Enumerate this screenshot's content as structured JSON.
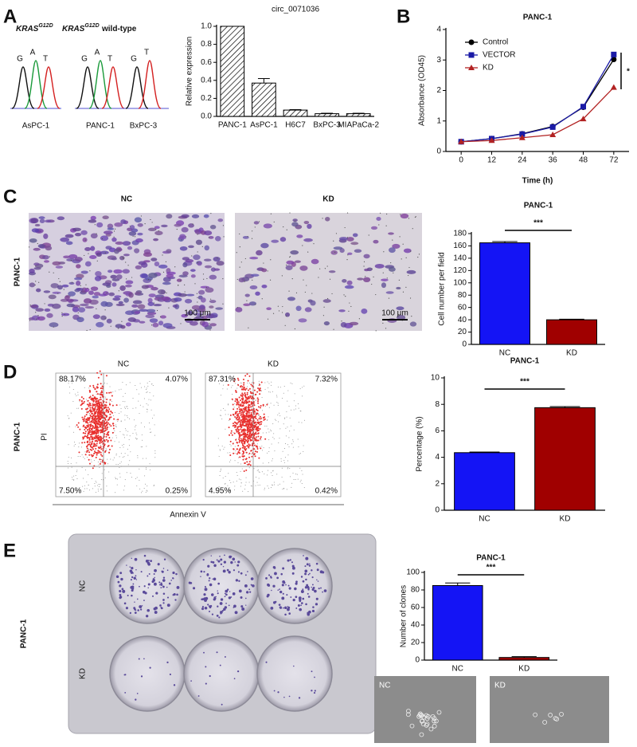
{
  "panel_letters": [
    "A",
    "B",
    "C",
    "D",
    "E"
  ],
  "panel_a": {
    "genotypes": [
      {
        "text": "KRAS",
        "sup": "G12D"
      },
      {
        "text": "KRAS",
        "sup": "G12D"
      },
      {
        "text": "wild-type"
      }
    ],
    "samples": [
      {
        "name": "AsPC-1",
        "bases": [
          "G",
          "A",
          "T"
        ]
      },
      {
        "name": "PANC-1",
        "bases": [
          "G",
          "A",
          "T"
        ]
      },
      {
        "name": "BxPC-3",
        "bases": [
          "G",
          "T"
        ]
      }
    ]
  },
  "panel_c": {
    "row_label": "PANC-1",
    "images": [
      {
        "label": "NC",
        "scale_bar": "100 μm"
      },
      {
        "label": "KD",
        "scale_bar": "100 μm"
      }
    ]
  },
  "panel_d": {
    "row_label": "PANC-1",
    "y_axis": "PI",
    "x_axis": "Annexin V",
    "plots": [
      {
        "label": "NC",
        "quadrants": [
          "88.17%",
          "4.07%",
          "7.50%",
          "0.25%"
        ]
      },
      {
        "label": "KD",
        "quadrants": [
          "87.31%",
          "7.32%",
          "4.95%",
          "0.42%"
        ]
      }
    ]
  },
  "panel_e": {
    "row_label": "PANC-1",
    "plate_rows": [
      "NC",
      "KD"
    ],
    "micrographs": [
      "NC",
      "KD"
    ]
  },
  "chart_data": [
    {
      "type": "bar",
      "title": "circ_0071036",
      "categories": [
        "PANC-1",
        "AsPC-1",
        "H6C7",
        "BxPC-3",
        "MIAPaCa-2"
      ],
      "values": [
        1.0,
        0.37,
        0.07,
        0.03,
        0.03
      ],
      "errors": [
        0,
        0.05,
        0.005,
        0.005,
        0.005
      ],
      "color": "#000000",
      "hatch": true,
      "ylim": [
        0,
        1.0
      ],
      "yticks": [
        {
          "value": 0,
          "label": "0.0"
        },
        {
          "value": 0.2,
          "label": "0.2"
        },
        {
          "value": 0.4,
          "label": "0.4"
        },
        {
          "value": 0.6,
          "label": "0.6"
        },
        {
          "value": 0.8,
          "label": "0.8"
        },
        {
          "value": 1.0,
          "label": "1.0"
        }
      ],
      "ylabel": "Relative expression"
    },
    {
      "type": "line",
      "title": "PANC-1",
      "categories": [
        "0",
        "12",
        "24",
        "36",
        "48",
        "72"
      ],
      "series": [
        {
          "name": "Control",
          "color": "#000000",
          "marker": "circle",
          "values": [
            0.32,
            0.42,
            0.58,
            0.82,
            1.45,
            3.02
          ]
        },
        {
          "name": "VECTOR",
          "color": "#1a1aa6",
          "marker": "square",
          "values": [
            0.32,
            0.42,
            0.57,
            0.8,
            1.47,
            3.18
          ]
        },
        {
          "name": "KD",
          "color": "#b22222",
          "marker": "triangle",
          "values": [
            0.32,
            0.36,
            0.45,
            0.55,
            1.07,
            2.1
          ]
        }
      ],
      "ylim": [
        0,
        4
      ],
      "yticks": [
        0,
        1,
        2,
        3,
        4
      ],
      "xlabel": "Time (h)",
      "ylabel": "Absorbance (OD45)",
      "annotation": "*"
    },
    {
      "type": "bar",
      "title": "PANC-1",
      "categories": [
        "NC",
        "KD"
      ],
      "values": [
        165,
        40
      ],
      "errors": [
        2,
        1
      ],
      "colors": [
        "#1414f5",
        "#a00000"
      ],
      "ylim": [
        0,
        180
      ],
      "yticks": [
        0,
        20,
        40,
        60,
        80,
        100,
        120,
        140,
        160,
        180
      ],
      "ylabel": "Cell number per field",
      "annotation": "***"
    },
    {
      "type": "bar",
      "title": "PANC-1",
      "categories": [
        "NC",
        "KD"
      ],
      "values": [
        4.35,
        7.75
      ],
      "errors": [
        0.05,
        0.08
      ],
      "colors": [
        "#1414f5",
        "#a00000"
      ],
      "ylim": [
        0,
        10
      ],
      "yticks": [
        0,
        2,
        4,
        6,
        8,
        10
      ],
      "ylabel": "Percentage (%)",
      "annotation": "***"
    },
    {
      "type": "bar",
      "title": "PANC-1",
      "categories": [
        "NC",
        "KD"
      ],
      "values": [
        85,
        3
      ],
      "errors": [
        3,
        1
      ],
      "colors": [
        "#1414f5",
        "#a00000"
      ],
      "ylim": [
        0,
        100
      ],
      "yticks": [
        0,
        20,
        40,
        60,
        80,
        100
      ],
      "ylabel": "Number of clones",
      "annotation": "***"
    }
  ]
}
